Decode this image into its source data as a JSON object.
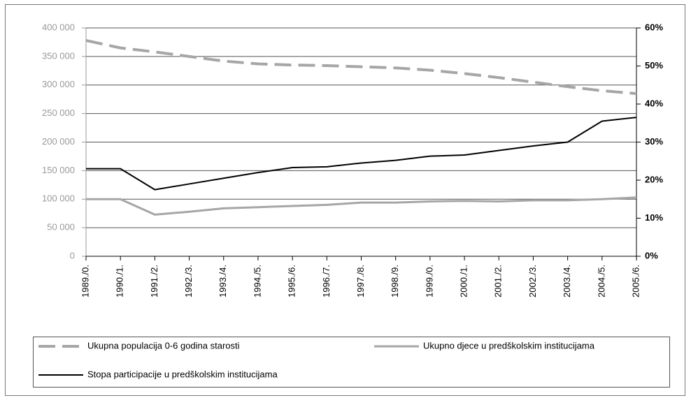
{
  "chart_data": {
    "type": "line",
    "categories": [
      "1989./0.",
      "1990./1.",
      "1991./2.",
      "1992./3.",
      "1993./4.",
      "1994./5.",
      "1995./6.",
      "1996./7.",
      "1997./8.",
      "1998./9.",
      "1999./0.",
      "2000./1.",
      "2001./2.",
      "2002./3.",
      "2003./4.",
      "2004./5.",
      "2005./6."
    ],
    "series": [
      {
        "name": "Ukupna populacija 0-6 godina starosti",
        "color": "#a6a6a6",
        "line_style": "dashed",
        "values": [
          378000,
          365000,
          358000,
          350000,
          342000,
          337000,
          335000,
          334000,
          332000,
          330000,
          326000,
          320000,
          313000,
          305000,
          297000,
          290000,
          285000
        ]
      },
      {
        "name": "Ukupno djece u predškolskim institucijama",
        "color": "#a6a6a6",
        "line_style": "solid",
        "values": [
          100000,
          100000,
          73000,
          78000,
          84000,
          86000,
          88000,
          90000,
          94000,
          94000,
          96000,
          97000,
          96000,
          98000,
          98000,
          100000,
          103000
        ]
      },
      {
        "name": "Stopa participacije u predškolskim institucijama",
        "color": "#000000",
        "line_style": "solid",
        "axis": "y2",
        "values": [
          23,
          23,
          17.5,
          19,
          20.5,
          22,
          23.3,
          23.5,
          24.5,
          25.2,
          26.3,
          26.6,
          27.8,
          29,
          30,
          35.5,
          36.5
        ]
      }
    ],
    "ylim": [
      0,
      400000
    ],
    "yticks": [
      0,
      {
        "value": 50000,
        "label": "50 000"
      },
      {
        "value": 100000,
        "label": "100 000"
      },
      {
        "value": 150000,
        "label": "150 000"
      },
      {
        "value": 200000,
        "label": "200 000"
      },
      {
        "value": 250000,
        "label": "250 000"
      },
      {
        "value": 300000,
        "label": "300 000"
      },
      {
        "value": 350000,
        "label": "350 000"
      },
      {
        "value": 400000,
        "label": "400 000"
      }
    ],
    "y2lim": [
      0,
      60
    ],
    "y2ticks": [
      {
        "value": 0,
        "label": "0%"
      },
      {
        "value": 10,
        "label": "10%"
      },
      {
        "value": 20,
        "label": "20%"
      },
      {
        "value": 30,
        "label": "30%"
      },
      {
        "value": 40,
        "label": "40%"
      },
      {
        "value": 50,
        "label": "50%"
      },
      {
        "value": 60,
        "label": "60%"
      }
    ],
    "grid": true,
    "legend": "bottom"
  }
}
